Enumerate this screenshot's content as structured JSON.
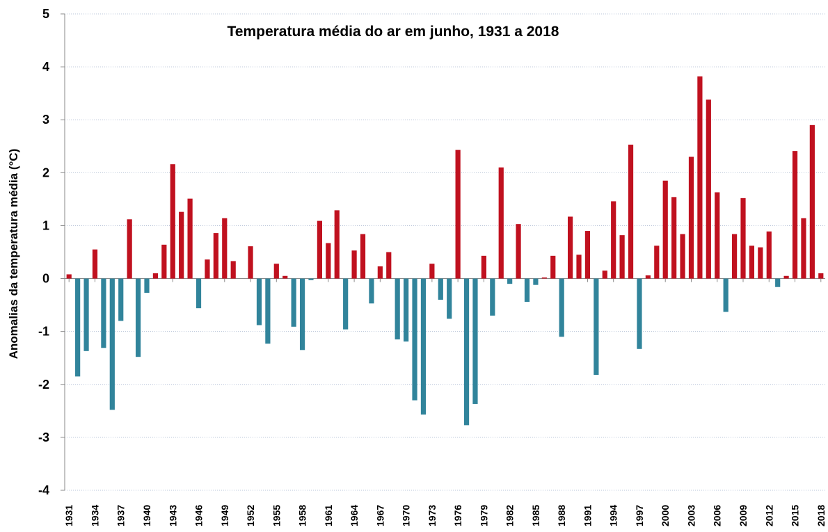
{
  "chart_data": {
    "type": "bar",
    "title": "Temperatura média do ar em junho, 1931 a 2018",
    "y_label": "Anomalias da temperatura média (°C)",
    "x": [
      1931,
      1932,
      1933,
      1934,
      1935,
      1936,
      1937,
      1938,
      1939,
      1940,
      1941,
      1942,
      1943,
      1944,
      1945,
      1946,
      1947,
      1948,
      1949,
      1950,
      1951,
      1952,
      1953,
      1954,
      1955,
      1956,
      1957,
      1958,
      1959,
      1960,
      1961,
      1962,
      1963,
      1964,
      1965,
      1966,
      1967,
      1968,
      1969,
      1970,
      1971,
      1972,
      1973,
      1974,
      1975,
      1976,
      1977,
      1978,
      1979,
      1980,
      1981,
      1982,
      1983,
      1984,
      1985,
      1986,
      1987,
      1988,
      1989,
      1990,
      1991,
      1992,
      1993,
      1994,
      1995,
      1996,
      1997,
      1998,
      1999,
      2000,
      2001,
      2002,
      2003,
      2004,
      2005,
      2006,
      2007,
      2008,
      2009,
      2010,
      2011,
      2012,
      2013,
      2014,
      2015,
      2016,
      2017,
      2018
    ],
    "values": [
      0.08,
      -1.85,
      -1.37,
      0.55,
      -1.31,
      -2.48,
      -0.8,
      1.12,
      -1.48,
      -0.27,
      0.1,
      0.64,
      2.16,
      1.26,
      1.51,
      -0.56,
      0.36,
      0.86,
      1.14,
      0.33,
      0,
      0.61,
      -0.88,
      -1.23,
      0.28,
      0.05,
      -0.91,
      -1.35,
      -0.03,
      1.09,
      0.67,
      1.29,
      -0.96,
      0.53,
      0.84,
      -0.47,
      0.23,
      0.5,
      -1.15,
      -1.19,
      -2.3,
      -2.57,
      0.28,
      -0.4,
      -0.76,
      2.43,
      -2.77,
      -2.37,
      0.43,
      -0.7,
      2.1,
      -0.1,
      1.03,
      -0.44,
      -0.12,
      0.02,
      0.43,
      -1.1,
      1.17,
      0.45,
      0.9,
      -1.82,
      0.15,
      1.46,
      0.82,
      2.53,
      -1.33,
      0.06,
      0.62,
      1.85,
      1.54,
      0.84,
      2.3,
      3.82,
      3.38,
      1.63,
      -0.63,
      0.84,
      1.52,
      0.62,
      0.59,
      0.89,
      -0.16,
      0.05,
      2.41,
      1.14,
      2.9,
      0.1
    ],
    "color_positive": "#c0111f",
    "color_negative": "#31849b",
    "xlim": [
      1930.5,
      2018.5
    ],
    "xticks": [
      1931,
      1934,
      1937,
      1940,
      1943,
      1946,
      1949,
      1952,
      1955,
      1958,
      1961,
      1964,
      1967,
      1970,
      1973,
      1976,
      1979,
      1982,
      1985,
      1988,
      1991,
      1994,
      1997,
      2000,
      2003,
      2006,
      2009,
      2012,
      2015,
      2018
    ],
    "ylim": [
      -4,
      5
    ],
    "yticks": [
      -4,
      -3,
      -2,
      -1,
      0,
      1,
      2,
      3,
      4,
      5
    ],
    "grid": true
  }
}
